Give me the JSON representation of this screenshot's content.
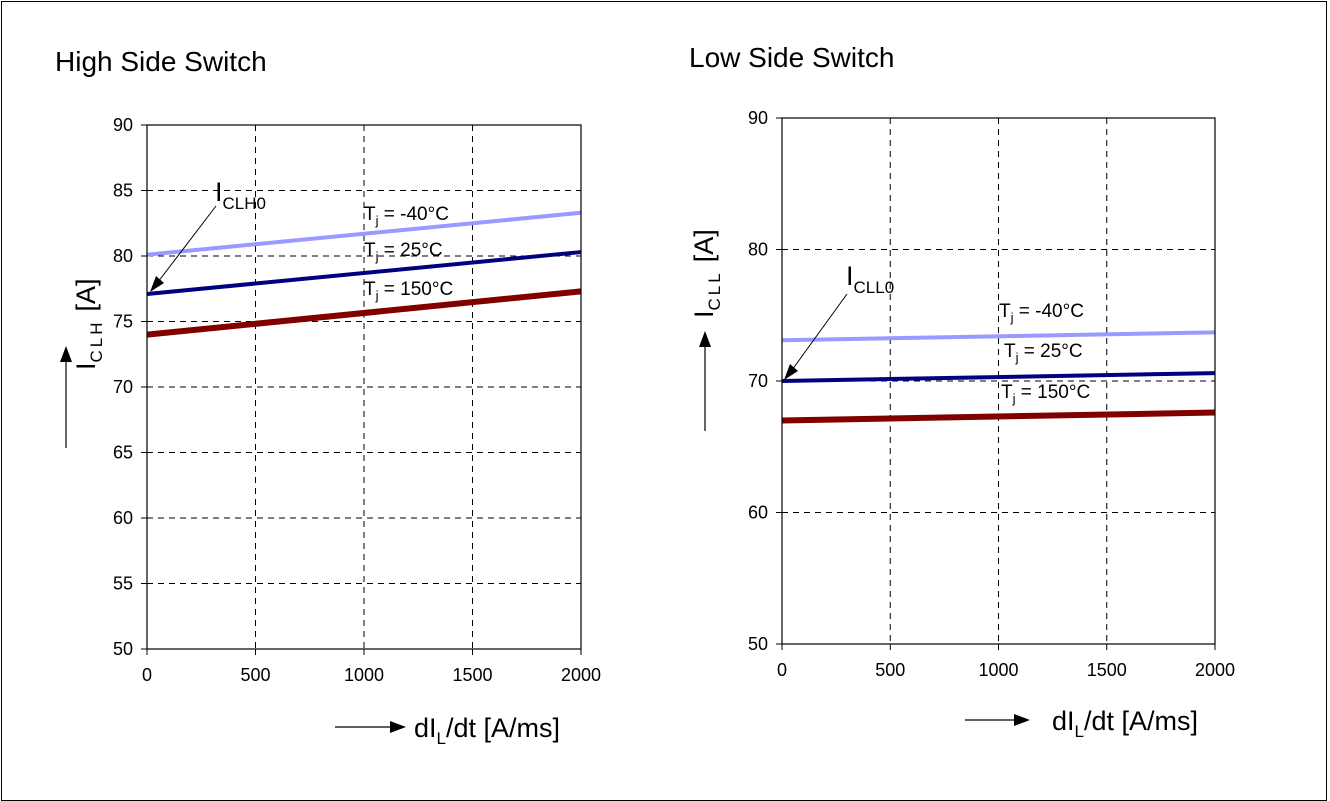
{
  "chart_data": [
    {
      "type": "line",
      "title": "High Side Switch",
      "xlabel_text": "dI",
      "xlabel_sub": "L",
      "xlabel_unit": "/dt [A/ms]",
      "ylabel_text": "I",
      "ylabel_sub": "CLH",
      "ylabel_unit": "[A]",
      "xlim": [
        0,
        2000
      ],
      "ylim": [
        50,
        90
      ],
      "xticks": [
        0,
        500,
        1000,
        1500,
        2000
      ],
      "yticks": [
        50,
        55,
        60,
        65,
        70,
        75,
        80,
        85,
        90
      ],
      "grid": true,
      "series": [
        {
          "name": "T_j = -40°C",
          "color": "#9999ff",
          "x": [
            0,
            2000
          ],
          "y": [
            80.1,
            83.3
          ]
        },
        {
          "name": "T_j = 25°C",
          "color": "#000080",
          "x": [
            0,
            2000
          ],
          "y": [
            77.1,
            80.3
          ]
        },
        {
          "name": "T_j = 150°C",
          "color": "#800000",
          "x": [
            0,
            2000
          ],
          "y": [
            74.0,
            77.3
          ]
        }
      ],
      "annotation": {
        "text": "I",
        "sub": "CLH0",
        "x": 0,
        "y": 77.1
      },
      "series_labels": [
        {
          "main": "T",
          "sub": "j",
          "rest": " = -40°C"
        },
        {
          "main": "T",
          "sub": "j",
          "rest": " = 25°C"
        },
        {
          "main": "T",
          "sub": "j",
          "rest": " = 150°C"
        }
      ]
    },
    {
      "type": "line",
      "title": "Low Side Switch",
      "xlabel_text": "dI",
      "xlabel_sub": "L",
      "xlabel_unit": "/dt [A/ms]",
      "ylabel_text": "I",
      "ylabel_sub": "CLL",
      "ylabel_unit": "[A]",
      "xlim": [
        0,
        2000
      ],
      "ylim": [
        50,
        90
      ],
      "xticks": [
        0,
        500,
        1000,
        1500,
        2000
      ],
      "yticks": [
        50,
        60,
        70,
        80,
        90
      ],
      "grid": true,
      "series": [
        {
          "name": "T_j = -40°C",
          "color": "#9999ff",
          "x": [
            0,
            2000
          ],
          "y": [
            73.1,
            73.7
          ]
        },
        {
          "name": "T_j = 25°C",
          "color": "#000080",
          "x": [
            0,
            2000
          ],
          "y": [
            70.0,
            70.6
          ]
        },
        {
          "name": "T_j = 150°C",
          "color": "#800000",
          "x": [
            0,
            2000
          ],
          "y": [
            67.0,
            67.6
          ]
        }
      ],
      "annotation": {
        "text": "I",
        "sub": "CLL0",
        "x": 0,
        "y": 70.0
      },
      "series_labels": [
        {
          "main": "T",
          "sub": "j",
          "rest": " = -40°C"
        },
        {
          "main": "T",
          "sub": "j",
          "rest": " = 25°C"
        },
        {
          "main": "T",
          "sub": "j",
          "rest": " = 150°C"
        }
      ]
    }
  ]
}
